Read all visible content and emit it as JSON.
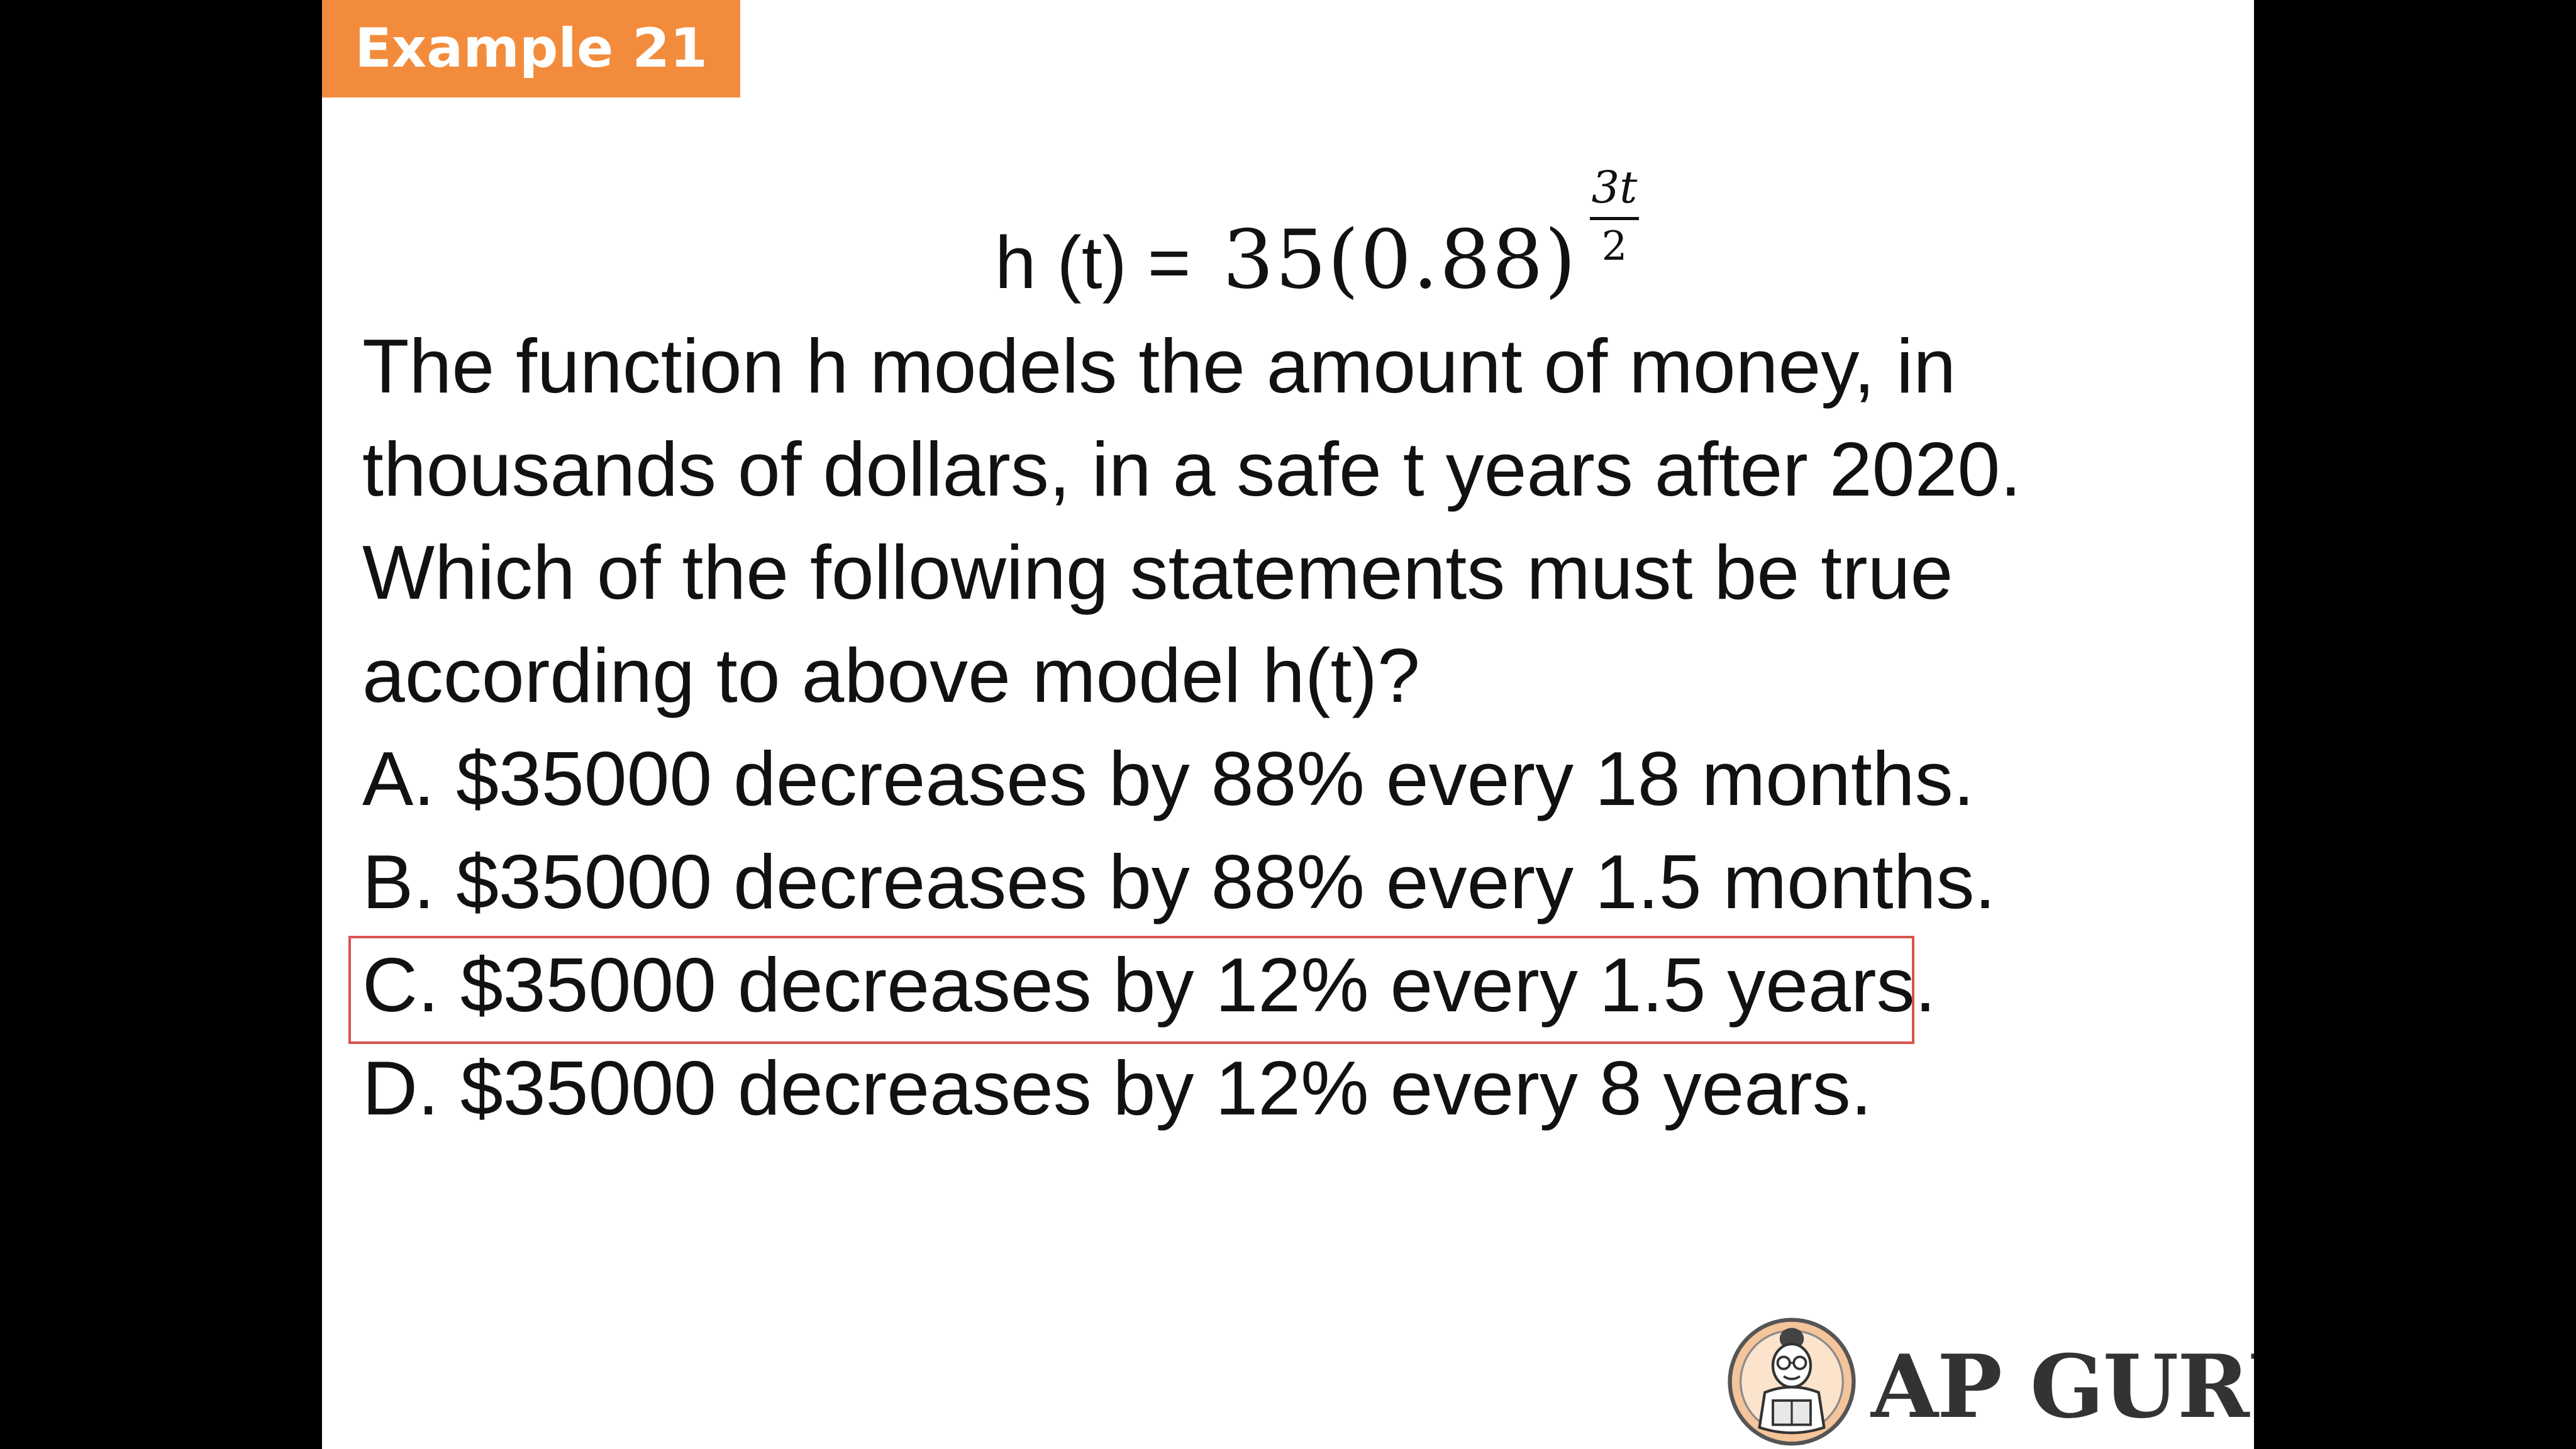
{
  "slide": {
    "tag": "Example 21",
    "formula": {
      "lhs": "h (t) =",
      "base": "35(0.88)",
      "exponent_numerator": "3t",
      "exponent_denominator": "2"
    },
    "question_lines": [
      "The function h models the amount of money, in",
      "thousands of dollars, in a safe t years after 2020.",
      "Which of the following statements must be true",
      "according to above model h(t)?"
    ],
    "options": [
      {
        "text": "A. $35000 decreases by 88% every 18 months."
      },
      {
        "text": "B. $35000 decreases by 88% every 1.5 months."
      },
      {
        "text": "C. $35000 decreases by 12% every 1.5 years."
      },
      {
        "text": "D. $35000 decreases by 12% every 8 years."
      }
    ],
    "highlighted_option": "C",
    "logo_text": "AP GURU"
  },
  "colors": {
    "tag_background": "#f28c3c",
    "highlight_border": "#d9534f",
    "letterbox": "#000000",
    "slide_background": "#ffffff"
  },
  "icons": {
    "logo": "ap-guru-mascot-icon"
  }
}
